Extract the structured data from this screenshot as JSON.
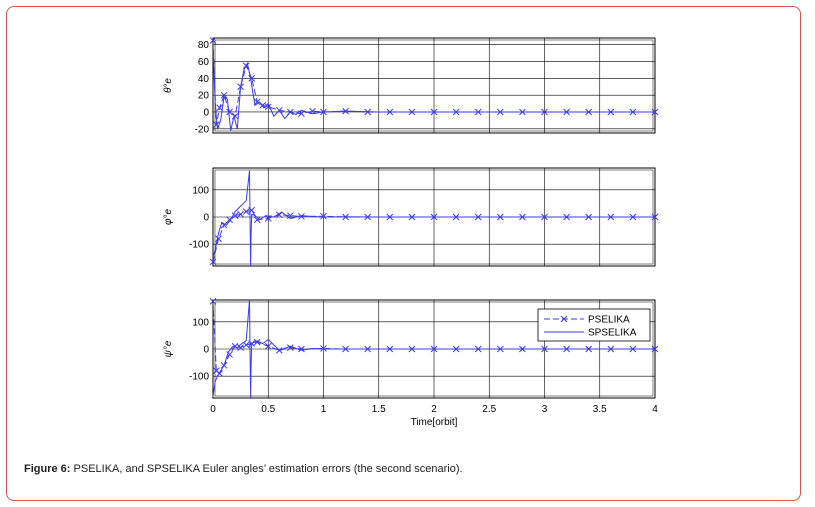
{
  "caption": {
    "label": "Figure 6:",
    "text": "PSELIKA, and SPSELIKA Euler angles’ estimation errors (the second scenario)."
  },
  "colors": {
    "series": "#3b3bf0",
    "card_border": "#d9534f",
    "axis": "#000000",
    "grid": "#000000"
  },
  "chart_data": [
    {
      "type": "line",
      "ylabel": "θ°e",
      "ylim": [
        -25,
        88
      ],
      "yticks": [
        -20,
        0,
        20,
        40,
        60,
        80
      ],
      "xlim": [
        0,
        4
      ],
      "grid": true,
      "series": [
        {
          "name": "PSELIKA",
          "style": "dashed-x",
          "x": [
            0,
            0.03,
            0.06,
            0.1,
            0.15,
            0.2,
            0.25,
            0.3,
            0.35,
            0.4,
            0.45,
            0.5,
            0.6,
            0.7,
            0.8,
            0.9,
            1.0,
            1.2,
            1.4,
            1.6,
            1.8,
            2.0,
            2.2,
            2.4,
            2.6,
            2.8,
            3.0,
            3.2,
            3.4,
            3.6,
            3.8,
            4.0
          ],
          "y": [
            85,
            -15,
            5,
            20,
            0,
            -5,
            30,
            55,
            40,
            12,
            8,
            6,
            2,
            0,
            -2,
            1,
            0,
            1,
            0,
            0,
            0,
            0,
            0,
            0,
            0,
            0,
            0,
            0,
            0,
            0,
            0,
            0
          ]
        },
        {
          "name": "SPSELIKA",
          "style": "solid",
          "x": [
            0,
            0.02,
            0.04,
            0.07,
            0.1,
            0.13,
            0.16,
            0.19,
            0.22,
            0.25,
            0.28,
            0.31,
            0.34,
            0.38,
            0.42,
            0.46,
            0.5,
            0.55,
            0.6,
            0.65,
            0.7,
            0.75,
            0.8,
            0.9,
            1.0,
            1.2,
            1.5,
            2.0,
            2.5,
            3.0,
            3.5,
            4.0
          ],
          "y": [
            80,
            10,
            -20,
            -10,
            18,
            15,
            -22,
            -5,
            -20,
            30,
            50,
            58,
            40,
            8,
            12,
            5,
            10,
            -5,
            2,
            -8,
            0,
            -3,
            2,
            -2,
            0,
            1,
            0,
            0,
            0,
            0,
            0,
            0
          ]
        }
      ]
    },
    {
      "type": "line",
      "ylabel": "φ°e",
      "ylim": [
        -180,
        180
      ],
      "yticks": [
        -100,
        0,
        100
      ],
      "xlim": [
        0,
        4
      ],
      "grid": true,
      "series": [
        {
          "name": "PSELIKA",
          "style": "dashed-x",
          "x": [
            0,
            0.05,
            0.1,
            0.15,
            0.2,
            0.25,
            0.3,
            0.35,
            0.4,
            0.5,
            0.6,
            0.7,
            0.8,
            1.0,
            1.2,
            1.4,
            1.6,
            1.8,
            2.0,
            2.2,
            2.4,
            2.6,
            2.8,
            3.0,
            3.2,
            3.4,
            3.6,
            3.8,
            4.0
          ],
          "y": [
            -165,
            -80,
            -30,
            -10,
            5,
            10,
            20,
            25,
            -10,
            -5,
            8,
            5,
            2,
            3,
            0,
            0,
            0,
            0,
            0,
            0,
            0,
            0,
            0,
            0,
            0,
            0,
            0,
            0,
            0
          ]
        },
        {
          "name": "SPSELIKA",
          "style": "solid",
          "x": [
            0,
            0.02,
            0.05,
            0.08,
            0.12,
            0.16,
            0.2,
            0.25,
            0.3,
            0.33,
            0.34,
            0.345,
            0.35,
            0.38,
            0.42,
            0.48,
            0.55,
            0.62,
            0.7,
            0.8,
            0.9,
            1.0,
            1.2,
            1.5,
            2.0,
            2.5,
            3.0,
            3.5,
            4.0
          ],
          "y": [
            -150,
            -120,
            -60,
            -20,
            -30,
            -10,
            20,
            40,
            60,
            170,
            -180,
            -60,
            10,
            5,
            -10,
            5,
            0,
            18,
            -5,
            5,
            2,
            0,
            1,
            0,
            0,
            0,
            0,
            0,
            0
          ]
        }
      ]
    },
    {
      "type": "line",
      "ylabel": "ψ°e",
      "ylim": [
        -180,
        180
      ],
      "yticks": [
        -100,
        0,
        100
      ],
      "xlim": [
        0,
        4
      ],
      "xticks": [
        0,
        0.5,
        1,
        1.5,
        2,
        2.5,
        3,
        3.5,
        4
      ],
      "xticklabels": [
        "0",
        "0.5",
        "1",
        "1.5",
        "2",
        "2.5",
        "3",
        "3.5",
        "4"
      ],
      "xlabel": "Time[orbit]",
      "grid": true,
      "legend": {
        "entries": [
          "PSELIKA",
          "SPSELIKA"
        ],
        "placement": "top-right"
      },
      "series": [
        {
          "name": "PSELIKA",
          "style": "dashed-x",
          "x": [
            0,
            0.03,
            0.06,
            0.1,
            0.15,
            0.2,
            0.25,
            0.3,
            0.35,
            0.4,
            0.5,
            0.6,
            0.7,
            0.8,
            1.0,
            1.2,
            1.4,
            1.6,
            1.8,
            2.0,
            2.2,
            2.4,
            2.6,
            2.8,
            3.0,
            3.2,
            3.4,
            3.6,
            3.8,
            4.0
          ],
          "y": [
            175,
            -80,
            -90,
            -60,
            -20,
            10,
            5,
            15,
            20,
            25,
            10,
            -5,
            5,
            0,
            2,
            0,
            0,
            0,
            0,
            0,
            0,
            0,
            0,
            0,
            0,
            0,
            0,
            0,
            0,
            0
          ]
        },
        {
          "name": "SPSELIKA",
          "style": "solid",
          "x": [
            0,
            0.02,
            0.04,
            0.07,
            0.1,
            0.14,
            0.18,
            0.22,
            0.26,
            0.3,
            0.33,
            0.34,
            0.345,
            0.35,
            0.4,
            0.45,
            0.5,
            0.55,
            0.6,
            0.7,
            0.8,
            0.9,
            1.0,
            1.5,
            2.0,
            2.5,
            3.0,
            3.5,
            4.0
          ],
          "y": [
            -175,
            -120,
            -100,
            -80,
            -60,
            -10,
            10,
            5,
            20,
            30,
            180,
            -180,
            -60,
            20,
            30,
            20,
            35,
            15,
            -5,
            10,
            -5,
            2,
            0,
            0,
            0,
            0,
            0,
            0,
            0
          ]
        }
      ]
    }
  ]
}
